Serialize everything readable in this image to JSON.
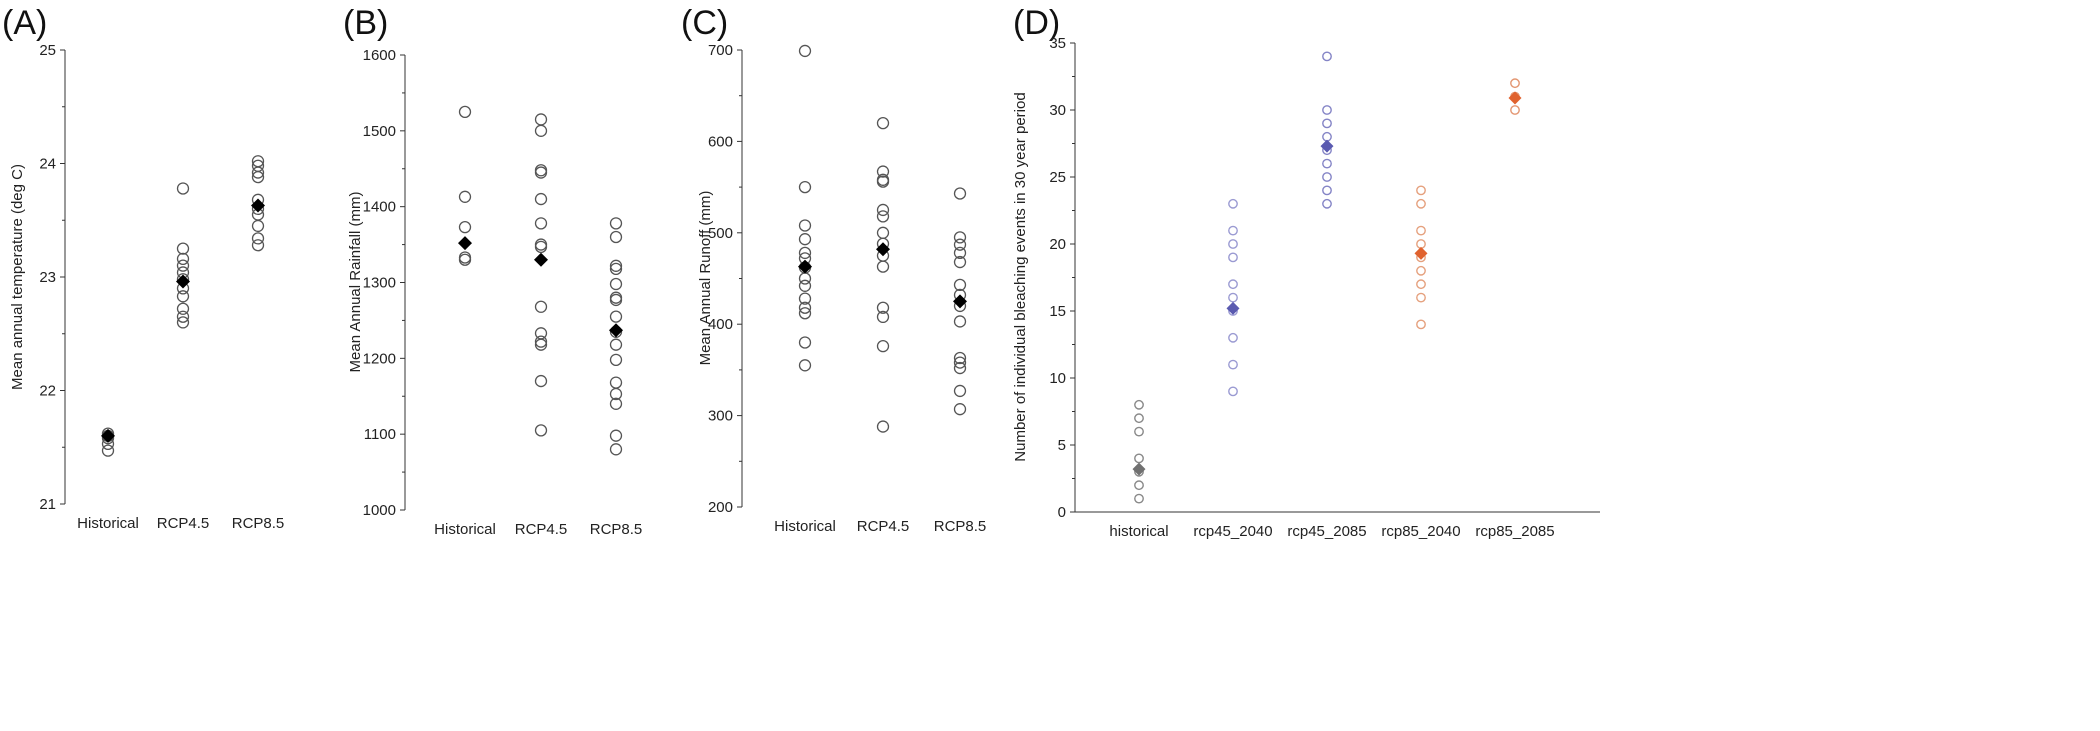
{
  "chart_data": [
    {
      "type": "scatter",
      "panel_label": "(A)",
      "ylabel": "Mean annual temperature (deg C)",
      "ylim": [
        21,
        25
      ],
      "yticks": [
        "21",
        "22",
        "23",
        "24",
        "25"
      ],
      "categories": [
        "Historical",
        "RCP4.5",
        "RCP8.5"
      ],
      "points": [
        [
          21.47,
          21.53,
          21.58,
          21.6,
          21.62
        ],
        [
          22.6,
          22.65,
          22.72,
          22.83,
          22.9,
          22.98,
          23.04,
          23.1,
          23.16,
          23.25,
          23.78
        ],
        [
          23.28,
          23.34,
          23.45,
          23.55,
          23.6,
          23.68,
          23.88,
          23.92,
          23.98,
          24.02
        ]
      ],
      "means": [
        21.6,
        22.96,
        23.63
      ],
      "colors": {
        "points": "#555555",
        "mean": "#000000"
      }
    },
    {
      "type": "scatter",
      "panel_label": "(B)",
      "ylabel": "Mean Annual Rainfall (mm)",
      "ylim": [
        1000,
        1600
      ],
      "yticks": [
        "1000",
        "1100",
        "1200",
        "1300",
        "1400",
        "1500",
        "1600"
      ],
      "categories": [
        "Historical",
        "RCP4.5",
        "RCP8.5"
      ],
      "points": [
        [
          1330,
          1333,
          1373,
          1413,
          1525
        ],
        [
          1105,
          1170,
          1218,
          1222,
          1233,
          1268,
          1347,
          1350,
          1378,
          1410,
          1445,
          1448,
          1500,
          1515
        ],
        [
          1080,
          1098,
          1140,
          1153,
          1168,
          1198,
          1218,
          1235,
          1255,
          1277,
          1280,
          1298,
          1318,
          1322,
          1360,
          1378
        ]
      ],
      "means": [
        1352,
        1330,
        1237
      ],
      "colors": {
        "points": "#555555",
        "mean": "#000000"
      }
    },
    {
      "type": "scatter",
      "panel_label": "(C)",
      "ylabel": "Mean Annual Runoff (mm)",
      "ylim": [
        200,
        700
      ],
      "yticks": [
        "200",
        "300",
        "400",
        "500",
        "600",
        "700"
      ],
      "categories": [
        "Historical",
        "RCP4.5",
        "RCP8.5"
      ],
      "points": [
        [
          355,
          380,
          412,
          418,
          428,
          442,
          450,
          462,
          472,
          478,
          493,
          508,
          550,
          699
        ],
        [
          288,
          376,
          408,
          418,
          463,
          475,
          488,
          500,
          518,
          525,
          556,
          558,
          567,
          620
        ],
        [
          307,
          327,
          352,
          358,
          363,
          403,
          420,
          432,
          443,
          468,
          478,
          487,
          495,
          543
        ]
      ],
      "means": [
        463,
        482,
        425
      ],
      "colors": {
        "points": "#555555",
        "mean": "#000000"
      }
    },
    {
      "type": "scatter",
      "panel_label": "(D)",
      "ylabel": "Number of individual bleaching events in 30 year period",
      "ylim": [
        0,
        35
      ],
      "yticks": [
        "0",
        "5",
        "10",
        "15",
        "20",
        "25",
        "30",
        "35"
      ],
      "categories": [
        "historical",
        "rcp45_2040",
        "rcp45_2085",
        "rcp85_2040",
        "rcp85_2085"
      ],
      "points": [
        [
          1,
          2,
          3,
          4,
          6,
          7,
          8
        ],
        [
          9,
          11,
          13,
          15,
          16,
          17,
          19,
          20,
          21,
          23
        ],
        [
          23,
          24,
          25,
          26,
          27,
          28,
          29,
          30,
          34
        ],
        [
          14,
          16,
          17,
          18,
          19,
          20,
          21,
          23,
          24
        ],
        [
          30,
          31,
          32
        ]
      ],
      "means": [
        3.2,
        15.2,
        27.3,
        19.3,
        30.9
      ],
      "colors": {
        "series_points": [
          "#888888",
          "#9a9ad2",
          "#8484c6",
          "#e5a07d",
          "#e39570"
        ],
        "series_means": [
          "#707070",
          "#5a5ab0",
          "#5a5ab0",
          "#e0622e",
          "#e0622e"
        ]
      }
    }
  ]
}
